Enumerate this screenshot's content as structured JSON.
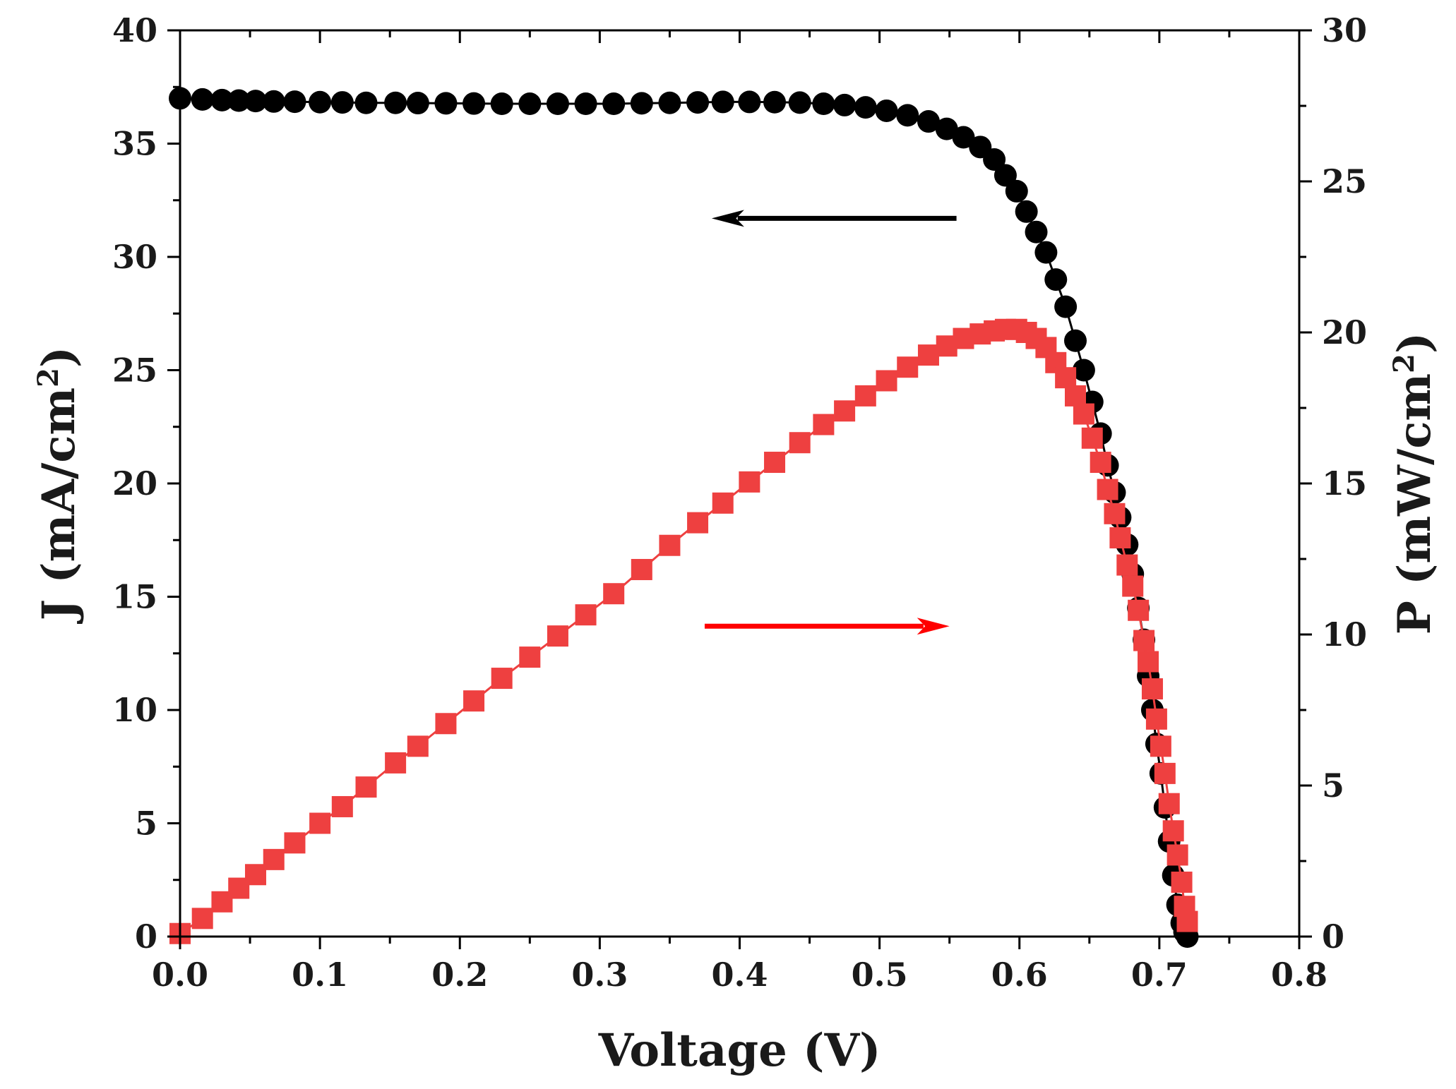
{
  "chart_data": {
    "type": "scatter",
    "x": [
      0.0,
      0.016,
      0.03,
      0.042,
      0.054,
      0.067,
      0.082,
      0.1,
      0.116,
      0.133,
      0.154,
      0.17,
      0.19,
      0.21,
      0.23,
      0.25,
      0.27,
      0.29,
      0.31,
      0.33,
      0.35,
      0.37,
      0.388,
      0.407,
      0.425,
      0.443,
      0.46,
      0.475,
      0.49,
      0.505,
      0.52,
      0.535,
      0.548,
      0.56,
      0.572,
      0.582,
      0.59,
      0.598,
      0.605,
      0.612,
      0.619,
      0.626,
      0.633,
      0.64,
      0.646,
      0.652,
      0.658,
      0.663,
      0.668,
      0.672,
      0.677,
      0.681,
      0.685,
      0.689,
      0.692,
      0.695,
      0.698,
      0.701,
      0.704,
      0.707,
      0.71,
      0.713,
      0.716,
      0.718,
      0.72
    ],
    "series": [
      {
        "name": "J",
        "axis": "left",
        "marker": "circle",
        "color": "#000000",
        "values": [
          37.0,
          36.95,
          36.92,
          36.9,
          36.88,
          36.86,
          36.85,
          36.83,
          36.82,
          36.8,
          36.8,
          36.79,
          36.78,
          36.77,
          36.76,
          36.76,
          36.76,
          36.76,
          36.76,
          36.78,
          36.8,
          36.82,
          36.84,
          36.84,
          36.83,
          36.81,
          36.76,
          36.7,
          36.6,
          36.45,
          36.25,
          35.98,
          35.65,
          35.28,
          34.85,
          34.3,
          33.6,
          32.9,
          32.0,
          31.1,
          30.2,
          29.0,
          27.8,
          26.3,
          25.0,
          23.6,
          22.2,
          20.8,
          19.6,
          18.5,
          17.3,
          16.0,
          14.5,
          13.1,
          11.5,
          10.0,
          8.5,
          7.2,
          5.7,
          4.2,
          2.7,
          1.4,
          0.6,
          0.2,
          0.0
        ]
      },
      {
        "name": "P",
        "axis": "right",
        "marker": "square",
        "color": "#ee4040",
        "values": [
          0.1,
          0.6,
          1.15,
          1.6,
          2.05,
          2.55,
          3.1,
          3.75,
          4.3,
          4.95,
          5.75,
          6.3,
          7.05,
          7.8,
          8.55,
          9.25,
          9.95,
          10.65,
          11.35,
          12.15,
          12.95,
          13.7,
          14.35,
          15.05,
          15.7,
          16.35,
          16.95,
          17.4,
          17.9,
          18.4,
          18.85,
          19.25,
          19.55,
          19.8,
          19.95,
          20.05,
          20.1,
          20.1,
          20.0,
          19.8,
          19.5,
          19.0,
          18.5,
          17.9,
          17.3,
          16.5,
          15.7,
          14.8,
          14.0,
          13.2,
          12.3,
          11.6,
          10.8,
          9.8,
          9.1,
          8.2,
          7.2,
          6.3,
          5.4,
          4.4,
          3.5,
          2.7,
          1.8,
          1.0,
          0.5
        ]
      }
    ],
    "xlabel": "Voltage (V)",
    "ylabel": "J (mA/cm",
    "ylabel_sup": "2",
    "ylabel_close": ")",
    "y2label": "P (mW/cm",
    "y2label_sup": "2",
    "y2label_close": ")",
    "xlim": [
      0.0,
      0.8
    ],
    "ylim": [
      0,
      40
    ],
    "y2lim": [
      0,
      30
    ],
    "xticks": [
      "0.0",
      "0.1",
      "0.2",
      "0.3",
      "0.4",
      "0.5",
      "0.6",
      "0.7",
      "0.8"
    ],
    "yticks": [
      "0",
      "5",
      "10",
      "15",
      "20",
      "25",
      "30",
      "35",
      "40"
    ],
    "y2ticks": [
      "0",
      "5",
      "10",
      "15",
      "20",
      "25",
      "30"
    ],
    "annotations": [
      {
        "type": "arrow",
        "direction": "left",
        "color": "#000000",
        "x_from": 0.555,
        "x_to": 0.38,
        "y": 31.7,
        "axis": "left"
      },
      {
        "type": "arrow",
        "direction": "right",
        "color": "#ff0000",
        "x_from": 0.375,
        "x_to": 0.55,
        "y": 13.7,
        "axis": "left"
      }
    ],
    "grid": false,
    "legend": "none"
  }
}
